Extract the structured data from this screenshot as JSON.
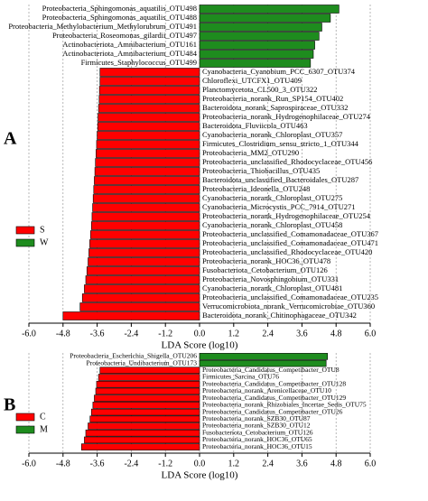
{
  "chart_data": [
    {
      "type": "bar",
      "orientation": "horizontal",
      "panel_label": "A",
      "xlabel": "LDA Score (log10)",
      "xlim": [
        -6,
        6
      ],
      "xticks": [
        {
          "value": -6,
          "label": "-6.0"
        },
        -4.8,
        -3.6,
        -2.4,
        -1.2,
        {
          "value": 0,
          "label": "0.0"
        },
        1.2,
        2.4,
        3.6,
        4.8,
        {
          "value": 6,
          "label": "6.0"
        }
      ],
      "grid": true,
      "categories": [
        "Proteobacteria_Sphingomonas_aquatilis_OTU498",
        "Proteobacteria_Sphingomonas_aquatilis_OTU488",
        "Proteobacteria_Methylobacterium_Methylorubrum_OTU491",
        "Proteobacteria_Roseomonas_gilardii_OTU497",
        "Actinobacteriota_Amnibacterium_OTU161",
        "Actinobacteriota_Amnibacterium_OTU484",
        "Firmicutes_Staphylococcus_OTU499",
        "Cyanobacteria_Cyanobium_PCC_6307_OTU374",
        "Chloroflexi_UTCFX1_OTU409",
        "Planctomycetota_CL500_3_OTU322",
        "Proteobacteria_norank_Run_SP154_OTU402",
        "Bacteroidota_norank_Saprospiraceae_OTU332",
        "Proteobacteria_norank_Hydrogenophilaceae_OTU274",
        "Bacteroidota_Fluviicola_OTU463",
        "Cyanobacteria_norank_Chloroplast_OTU357",
        "Firmicutes_Clostridium_sensu_stricto_1_OTU344",
        "Proteobacteria_MM2_OTU290",
        "Proteobacteria_unclassified_Rhodocyclaceae_OTU456",
        "Proteobacteria_Thiobacillus_OTU435",
        "Bacteroidota_unclassified_Bacteroidales_OTU287",
        "Proteobacteria_Ideonella_OTU248",
        "Cyanobacteria_norank_Chloroplast_OTU275",
        "Cyanobacteria_Microcystis_PCC_7914_OTU271",
        "Proteobacteria_norank_Hydrogenophilaceae_OTU254",
        "Cyanobacteria_norank_Chloroplast_OTU458",
        "Proteobacteria_unclassified_Comamonadaceae_OTU367",
        "Proteobacteria_unclassified_Comamonadaceae_OTU471",
        "Proteobacteria_unclassified_Rhodocyclaceae_OTU420",
        "Proteobacteria_norank_HOC36_OTU478",
        "Fusobacteriota_Cetobacterium_OTU126",
        "Proteobacteria_Novosphingobium_OTU331",
        "Cyanobacteria_norank_Chloroplast_OTU481",
        "Proteobacteria_unclassified_Comamonadaceae_OTU235",
        "Verrucomicrobiota_norank_Verrucomicrobiae_OTU360",
        "Bacteroidota_norank_Chitinophagaceae_OTU342"
      ],
      "legend": "left",
      "series": [
        {
          "name": "S",
          "color": "#ff0000",
          "values": [
            null,
            null,
            null,
            null,
            null,
            null,
            null,
            -3.5,
            -3.5,
            -3.52,
            -3.53,
            -3.55,
            -3.57,
            -3.58,
            -3.6,
            -3.62,
            -3.64,
            -3.66,
            -3.68,
            -3.7,
            -3.72,
            -3.74,
            -3.76,
            -3.78,
            -3.8,
            -3.83,
            -3.86,
            -3.89,
            -3.92,
            -3.96,
            -4.0,
            -4.05,
            -4.12,
            -4.2,
            -4.8
          ]
        },
        {
          "name": "W",
          "color": "#1e8c1e",
          "values": [
            4.9,
            4.6,
            4.3,
            4.2,
            4.05,
            4.0,
            3.9,
            null,
            null,
            null,
            null,
            null,
            null,
            null,
            null,
            null,
            null,
            null,
            null,
            null,
            null,
            null,
            null,
            null,
            null,
            null,
            null,
            null,
            null,
            null,
            null,
            null,
            null,
            null,
            null
          ]
        }
      ]
    },
    {
      "type": "bar",
      "orientation": "horizontal",
      "panel_label": "B",
      "xlabel": "LDA Score (log10)",
      "xlim": [
        -6,
        6
      ],
      "xticks": [
        {
          "value": -6,
          "label": "-6.0"
        },
        -4.8,
        -3.6,
        -2.4,
        -1.2,
        {
          "value": 0,
          "label": "0.0"
        },
        1.2,
        2.4,
        3.6,
        4.8,
        {
          "value": 6,
          "label": "6.0"
        }
      ],
      "grid": true,
      "categories": [
        "Proteobacteria_Escherichia_Shigella_OTU206",
        "Proteobacteria_Undibacterium_OTU173",
        "Proteobacteria_Candidatus_Competibacter_OTU8",
        "Firmicutes_Sarcina_OTU76",
        "Proteobacteria_Candidatus_Competibacter_OTU128",
        "Proteobacteria_norank_Arenicellaceae_OTU10",
        "Proteobacteria_Candidatus_Competibacter_OTU129",
        "Proteobacteria_norank_Rhizobiales_Incertae_Sedis_OTU75",
        "Proteobacteria_Candidatus_Competibacter_OTU26",
        "Proteobacteria_norank_SZB30_OTU87",
        "Proteobacteria_norank_SZB30_OTU12",
        "Fusobacteriota_Cetobacterium_OTU126",
        "Proteobacteria_norank_HOC36_OTU65",
        "Proteobacteria_norank_HOC36_OTU15"
      ],
      "legend": "left",
      "series": [
        {
          "name": "C",
          "color": "#ff0000",
          "values": [
            null,
            null,
            -3.5,
            -3.55,
            -3.62,
            -3.65,
            -3.7,
            -3.75,
            -3.8,
            -3.85,
            -3.92,
            -4.0,
            -4.05,
            -4.15
          ]
        },
        {
          "name": "M",
          "color": "#1e8c1e",
          "values": [
            4.5,
            4.45,
            null,
            null,
            null,
            null,
            null,
            null,
            null,
            null,
            null,
            null,
            null,
            null
          ]
        }
      ]
    }
  ]
}
